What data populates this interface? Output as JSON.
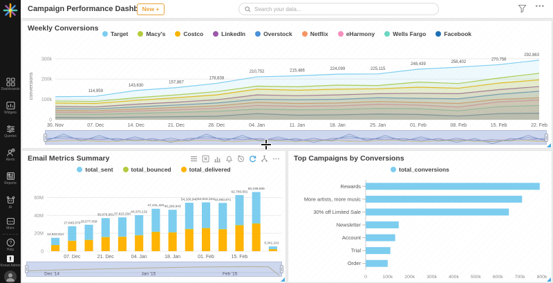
{
  "app": {
    "title": "Campaign Performance Dashboard",
    "new_button_label": "New +",
    "search_placeholder": "Search your data...",
    "accent_color": "#e8a33d"
  },
  "sidebar": {
    "items": [
      {
        "id": "dashboards",
        "label": "Dashboards"
      },
      {
        "id": "widgets",
        "label": "Widgets"
      },
      {
        "id": "queries",
        "label": "Queries"
      },
      {
        "id": "alerts",
        "label": "Alerts"
      },
      {
        "id": "reports",
        "label": "Reports"
      },
      {
        "id": "ai",
        "label": "AI"
      },
      {
        "id": "more",
        "label": "More"
      },
      {
        "id": "help",
        "label": "Help"
      },
      {
        "id": "knowi-admin",
        "label": "Knowi Admin"
      }
    ]
  },
  "widgets": {
    "weekly_conversions": {
      "title": "Weekly Conversions"
    },
    "email_metrics": {
      "title": "Email Metrics Summary",
      "toolbar_icons": [
        "menu",
        "export-excel",
        "bar-chart",
        "bell",
        "history",
        "refresh",
        "share",
        "more"
      ],
      "navigator_labels": [
        "Dec '14",
        "Jan '15",
        "Feb '15"
      ]
    },
    "top_campaigns": {
      "title": "Top Campaigns by Conversions"
    }
  },
  "chart_data": [
    {
      "type": "area",
      "title": "Weekly Conversions",
      "ylabel": "conversions",
      "ymax": 330000,
      "yticks": [
        {
          "v": 0,
          "label": "0"
        },
        {
          "v": 100000,
          "label": "100k"
        },
        {
          "v": 200000,
          "label": "200k"
        },
        {
          "v": 300000,
          "label": "300k"
        }
      ],
      "categories": [
        "30. Nov",
        "07. Dec",
        "14. Dec",
        "21. Dec",
        "28. Dec",
        "04. Jan",
        "11. Jan",
        "18. Jan",
        "25. Jan",
        "01. Feb",
        "08. Feb",
        "15. Feb",
        "22. Feb"
      ],
      "label_series_index": 0,
      "label_from": 1,
      "legend_position": "top",
      "series": [
        {
          "name": "Target",
          "color": "#7dcdef",
          "values": [
            113000,
            114959,
            143630,
            157867,
            178838,
            210752,
            215486,
            224099,
            225115,
            248439,
            258402,
            270756,
            292863
          ]
        },
        {
          "name": "Macy's",
          "color": "#b3cb3f",
          "values": [
            92000,
            90000,
            108000,
            122000,
            138000,
            165000,
            162000,
            170000,
            168000,
            185000,
            178000,
            205000,
            228000
          ]
        },
        {
          "name": "Costco",
          "color": "#f7b500",
          "values": [
            82000,
            80000,
            95000,
            108000,
            122000,
            150000,
            145000,
            150000,
            152000,
            160000,
            155000,
            180000,
            196000
          ]
        },
        {
          "name": "LinkedIn",
          "color": "#9b59a8",
          "values": [
            65000,
            63000,
            76000,
            86000,
            98000,
            122000,
            118000,
            122000,
            128000,
            130000,
            128000,
            148000,
            163000
          ]
        },
        {
          "name": "Overstock",
          "color": "#4a90d9",
          "values": [
            55000,
            53000,
            63000,
            72000,
            82000,
            100000,
            98000,
            100000,
            108000,
            105000,
            103000,
            125000,
            140000
          ]
        },
        {
          "name": "Netflix",
          "color": "#f49563",
          "values": [
            46000,
            44000,
            52000,
            60000,
            68000,
            85000,
            80000,
            82000,
            90000,
            85000,
            80000,
            100000,
            108000
          ]
        },
        {
          "name": "eHarmony",
          "color": "#f78fbe",
          "values": [
            37000,
            36000,
            43000,
            49000,
            56000,
            70000,
            66000,
            68000,
            76000,
            72000,
            62000,
            88000,
            96000
          ]
        },
        {
          "name": "Wells Fargo",
          "color": "#6bd6c1",
          "values": [
            27000,
            26000,
            31000,
            36000,
            41000,
            52000,
            48000,
            50000,
            56000,
            54000,
            44000,
            64000,
            70000
          ]
        },
        {
          "name": "Facebook",
          "color": "#1f6fb5",
          "values": [
            11000,
            10000,
            13000,
            15000,
            17000,
            30000,
            22000,
            24000,
            28000,
            26000,
            18000,
            30000,
            32000
          ]
        }
      ]
    },
    {
      "type": "stacked_bar",
      "title": "Email Metrics Summary",
      "ymax": 72000000,
      "yticks": [
        {
          "v": 0,
          "label": "0"
        },
        {
          "v": 20000000,
          "label": "20M"
        },
        {
          "v": 40000000,
          "label": "40M"
        },
        {
          "v": 60000000,
          "label": "60M"
        }
      ],
      "categories": [
        "30. Nov",
        "07. Dec",
        "14. Dec",
        "21. Dec",
        "28. Dec",
        "04. Jan",
        "11. Jan",
        "18. Jan",
        "25. Jan",
        "01. Feb",
        "08. Feb",
        "15. Feb",
        "22. Feb",
        "01. Mar"
      ],
      "xtick_indices": [
        1,
        3,
        5,
        7,
        9,
        11
      ],
      "totals": [
        14942814,
        27845570,
        29577059,
        36976901,
        37815334,
        40370132,
        47431320,
        46290843,
        54166948,
        54615344,
        53983971,
        62780581,
        66199699,
        5341101
      ],
      "stack_order": [
        "total_delivered",
        "total_bounced",
        "total_sent"
      ],
      "series": [
        {
          "name": "total_sent",
          "color": "#7dcdef",
          "values": [
            7992814,
            16065570,
            16877059,
            21006901,
            21435334,
            22470132,
            25661320,
            25030843,
            29226948,
            28565344,
            29143971,
            33450581,
            34939699,
            2991101
          ]
        },
        {
          "name": "total_bounced",
          "color": "#b3cb3f",
          "values": [
            150000,
            280000,
            300000,
            370000,
            380000,
            400000,
            470000,
            460000,
            540000,
            550000,
            540000,
            630000,
            660000,
            50000
          ]
        },
        {
          "name": "total_delivered",
          "color": "#ffb304",
          "values": [
            6800000,
            11500000,
            12400000,
            15600000,
            16000000,
            17500000,
            21300000,
            20800000,
            24400000,
            25500000,
            24300000,
            28700000,
            30600000,
            2300000
          ]
        }
      ]
    },
    {
      "type": "hbar",
      "title": "Top Campaigns by Conversions",
      "legend": [
        "total_conversions"
      ],
      "color": "#7dcdef",
      "xmax": 800000,
      "xticks": [
        {
          "v": 0,
          "label": "0"
        },
        {
          "v": 100000,
          "label": "100k"
        },
        {
          "v": 200000,
          "label": "200k"
        },
        {
          "v": 300000,
          "label": "300k"
        },
        {
          "v": 400000,
          "label": "400k"
        },
        {
          "v": 500000,
          "label": "500k"
        },
        {
          "v": 600000,
          "label": "600k"
        },
        {
          "v": 700000,
          "label": "700k"
        },
        {
          "v": 800000,
          "label": "800k"
        }
      ],
      "categories": [
        "Rewards",
        "More artists, more music",
        "30% off Limited Sale",
        "Newsletter",
        "Account",
        "Trial",
        "Order"
      ],
      "values": [
        790000,
        710000,
        650000,
        150000,
        134000,
        112000,
        100000
      ]
    }
  ]
}
